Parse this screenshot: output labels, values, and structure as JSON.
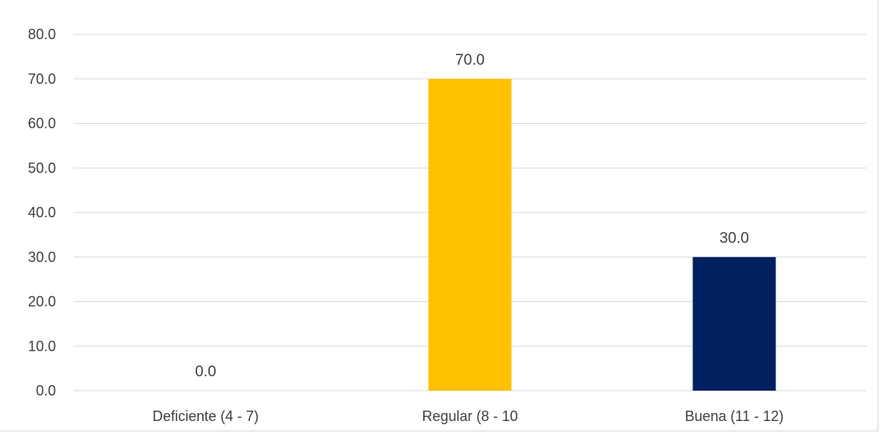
{
  "chart_data": {
    "type": "bar",
    "categories": [
      "Deficiente (4 - 7)",
      "Regular (8 - 10",
      "Buena (11 - 12)"
    ],
    "values": [
      0.0,
      70.0,
      30.0
    ],
    "data_labels": [
      "0.0",
      "70.0",
      "30.0"
    ],
    "bar_colors": [
      "#FFC000",
      "#FFC000",
      "#002060"
    ],
    "ylim": [
      0,
      80
    ],
    "yticks": [
      "0.0",
      "10.0",
      "20.0",
      "30.0",
      "40.0",
      "50.0",
      "60.0",
      "70.0",
      "80.0"
    ],
    "grid": true,
    "legend": "none",
    "title": "",
    "xlabel": "",
    "ylabel": ""
  }
}
